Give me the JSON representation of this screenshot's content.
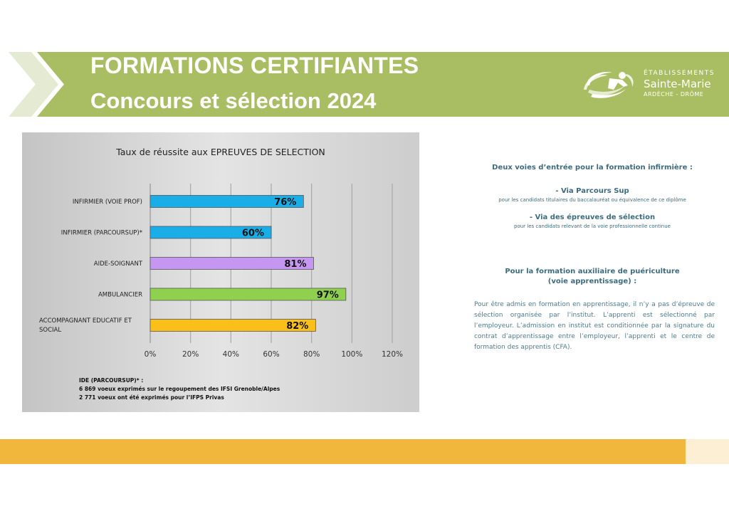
{
  "header": {
    "title_line1": "FORMATIONS CERTIFIANTES",
    "title_line2": "Concours et sélection 2024",
    "colors": {
      "band": "#a9bd62",
      "chevron": "#e4ebd2"
    }
  },
  "logo": {
    "line1": "ÉTABLISSEMENTS",
    "line2": "Sainte-Marie",
    "line3": "ARDÈCHE - DRÔME"
  },
  "chart_data": {
    "type": "bar",
    "orientation": "horizontal",
    "title": "Taux de réussite aux EPREUVES DE SELECTION",
    "categories": [
      "INFIRMIER (VOIE PROF)",
      "INFIRMIER (PARCOURSUP)*",
      "AIDE-SOIGNANT",
      "AMBULANCIER",
      "ACCOMPAGNANT EDUCATIF ET SOCIAL"
    ],
    "category_lines": [
      [
        "INFIRMIER (VOIE PROF)"
      ],
      [
        "INFIRMIER (PARCOURSUP)*"
      ],
      [
        "AIDE-SOIGNANT"
      ],
      [
        "AMBULANCIER"
      ],
      [
        "ACCOMPAGNANT EDUCATIF ET",
        "SOCIAL"
      ]
    ],
    "values": [
      76,
      60,
      81,
      97,
      82
    ],
    "data_labels": [
      "76%",
      "60%",
      "81%",
      "97%",
      "82%"
    ],
    "colors": [
      "#1aaee8",
      "#1aaee8",
      "#c597f0",
      "#8fd14f",
      "#fbbf1a"
    ],
    "xlim": [
      0,
      120
    ],
    "ticks": [
      "0%",
      "20%",
      "40%",
      "60%",
      "80%",
      "100%",
      "120%"
    ],
    "grid": true,
    "legend": "none"
  },
  "footnote": {
    "line1": "IDE (PARCOURSUP)* :",
    "line2": "6 869 voeux exprimés sur le regoupement des IFSI Grenoble/Alpes",
    "line3": "2 771 voeux ont été exprimés pour l’IFPS Privas"
  },
  "right": {
    "heading1": "Deux voies d’entrée pour la formation infirmière :",
    "item1_title": "-     Via Parcours Sup",
    "item1_sub": "pour les candidats titulaires du baccalauréat ou équivalence de ce diplôme",
    "item2_title": "-     Via des épreuves de sélection",
    "item2_sub": "pour les candidats relevant de la voie professionnelle continue",
    "heading2_line1": "Pour la formation auxiliaire de puériculture",
    "heading2_line2": "(voie apprentissage) :",
    "paragraph": "Pour être admis en formation en apprentissage, il n’y a pas d’épreuve de sélection organisée par l’institut. L’apprenti est sélectionné par l’employeur. L’admission en institut est conditionnée par la signature du contrat d’apprentissage entre l’employeur, l’apprenti et le centre de formation des apprentis (CFA)."
  },
  "footer": {
    "colors": {
      "bar": "#f1b63c",
      "end": "#fcefd3"
    }
  }
}
